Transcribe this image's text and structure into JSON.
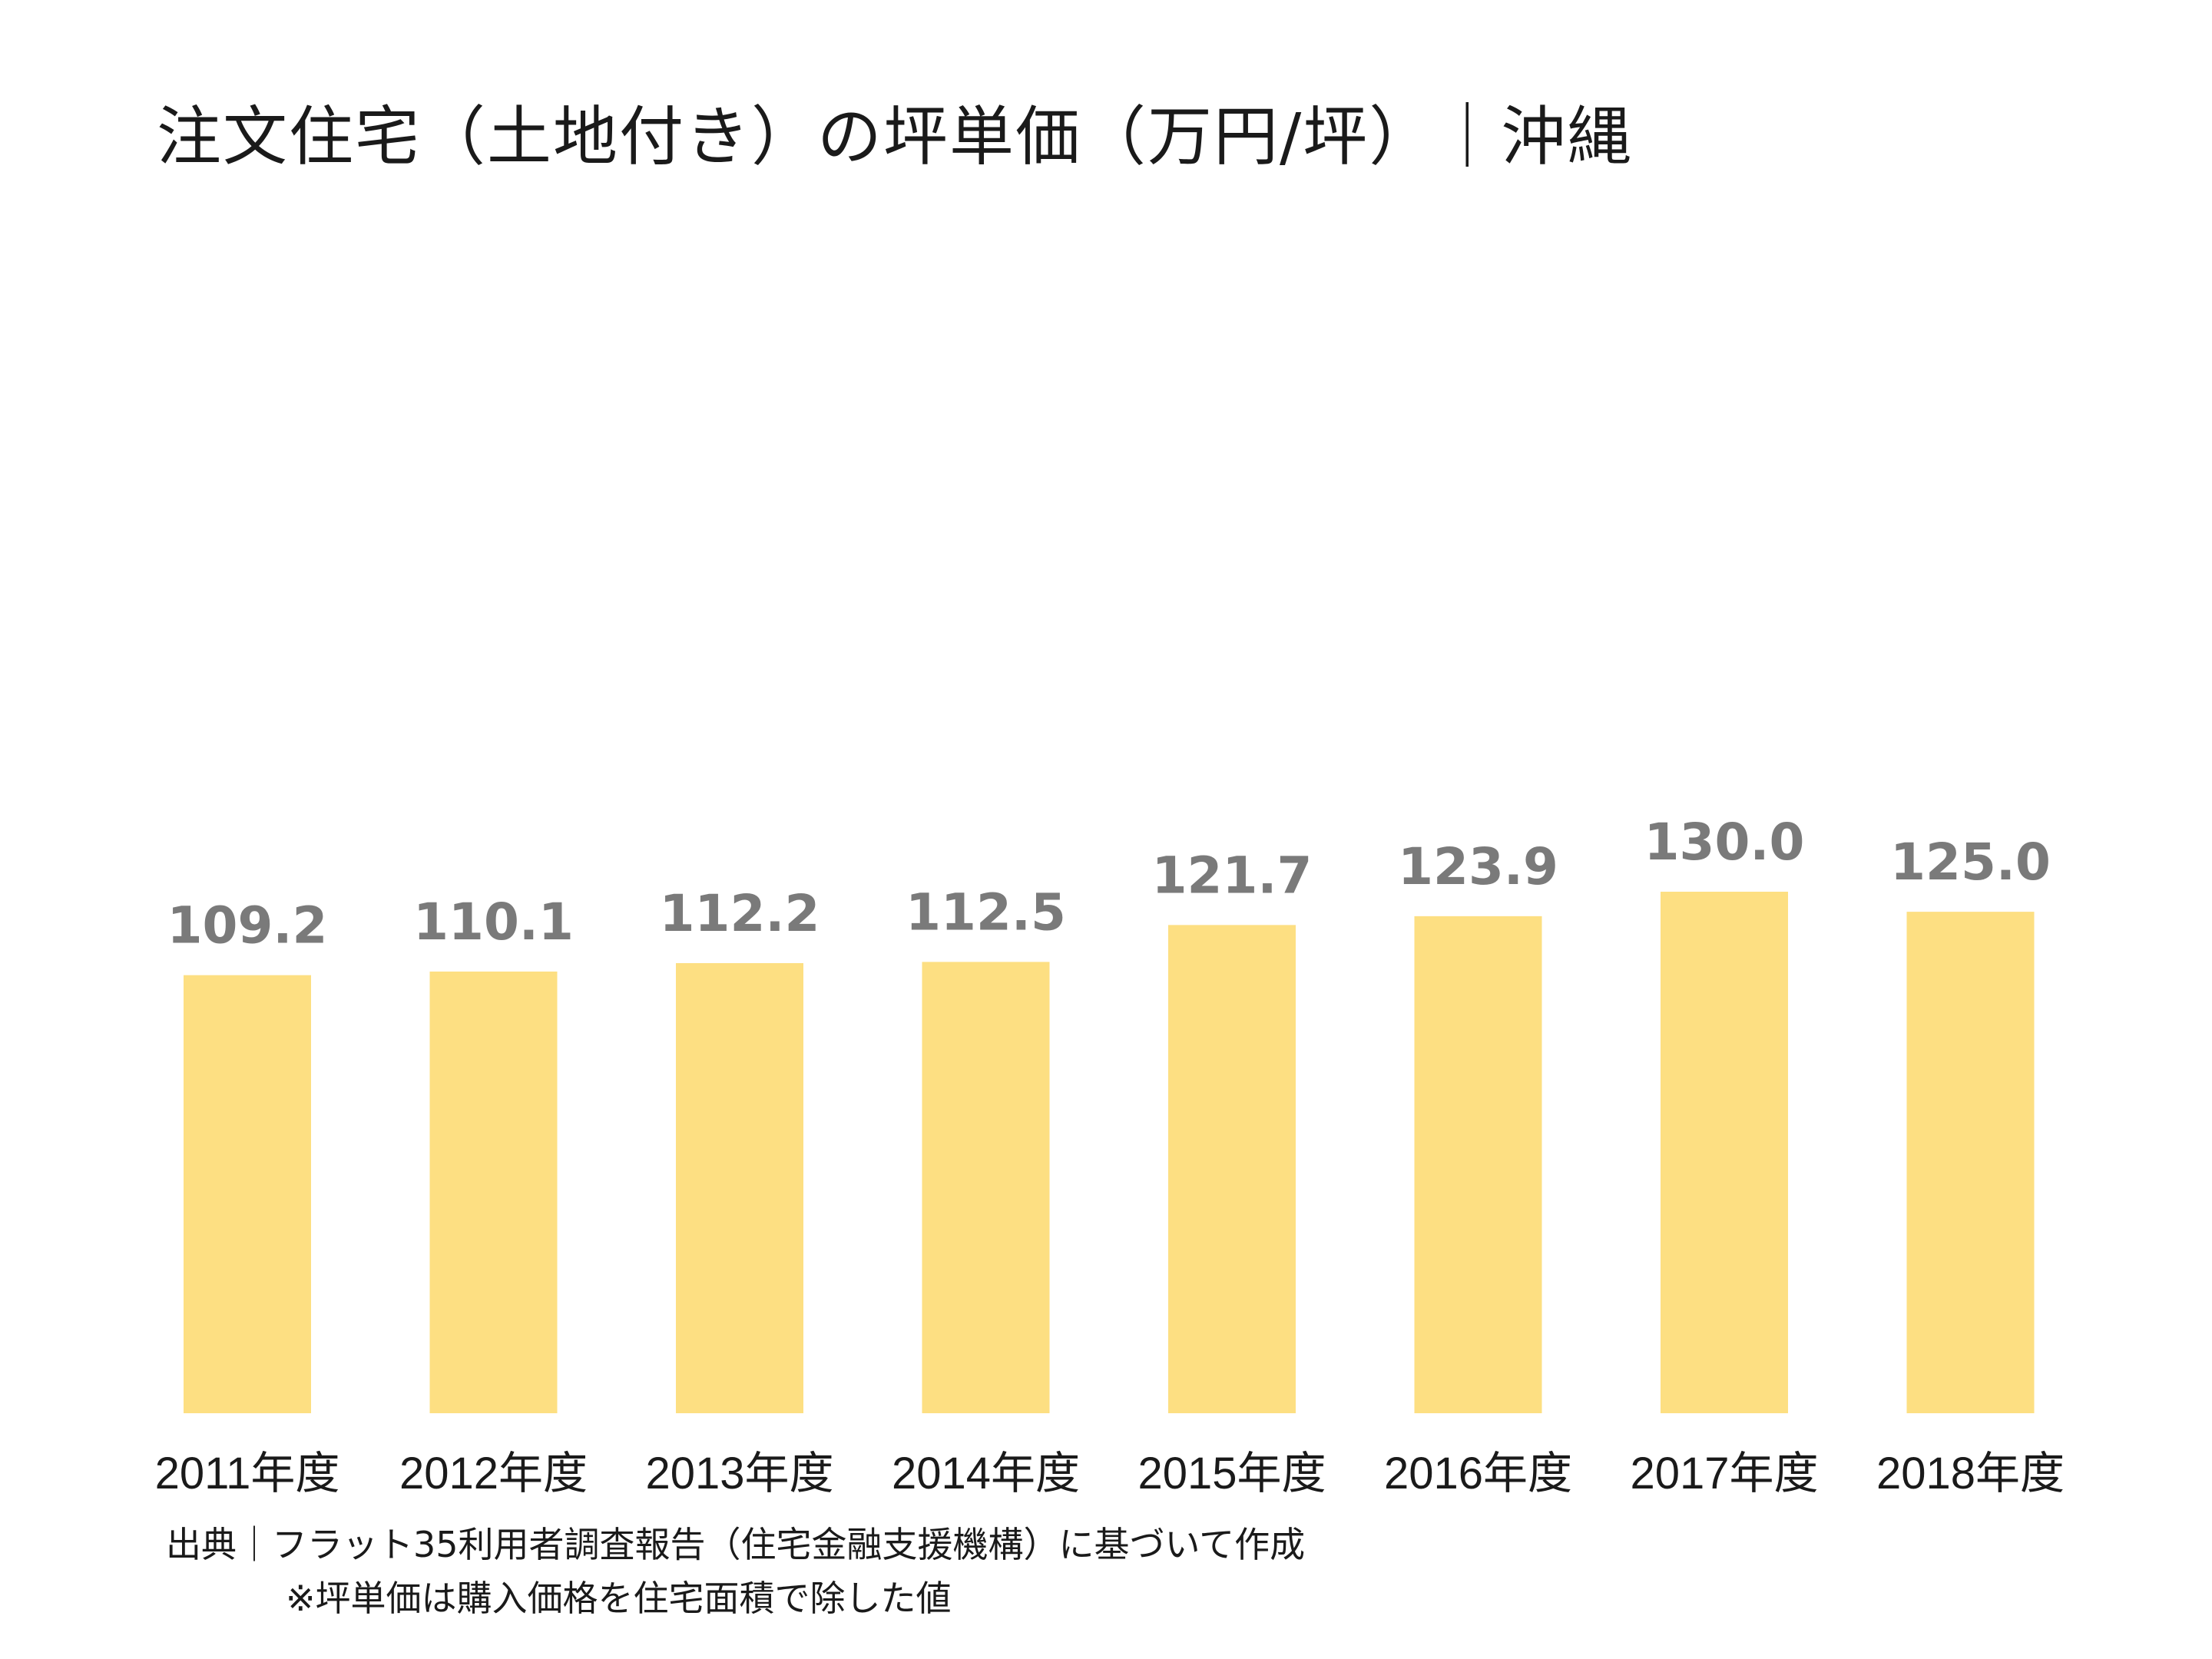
{
  "title": "注文住宅（土地付き）の坪単価（万円/坪）｜沖縄",
  "chart_data": {
    "type": "bar",
    "categories": [
      "2011年度",
      "2012年度",
      "2013年度",
      "2014年度",
      "2015年度",
      "2016年度",
      "2017年度",
      "2018年度"
    ],
    "values": [
      109.2,
      110.1,
      112.2,
      112.5,
      121.7,
      123.9,
      130.0,
      125.0
    ],
    "value_labels": [
      "109.2",
      "110.1",
      "112.2",
      "112.5",
      "121.7",
      "123.9",
      "130.0",
      "125.0"
    ],
    "title": "注文住宅（土地付き）の坪単価（万円/坪）｜沖縄",
    "xlabel": "",
    "ylabel": "",
    "ylim": [
      0,
      130
    ],
    "grid": false,
    "legend": "none",
    "bar_color": "#FDDF82",
    "label_color": "#7A7A7A"
  },
  "footer": {
    "source": "出典｜フラット35利用者調査報告（住宅金融支援機構）に基づいて作成",
    "note": "※坪単価は購入価格を住宅面積で除した値"
  }
}
